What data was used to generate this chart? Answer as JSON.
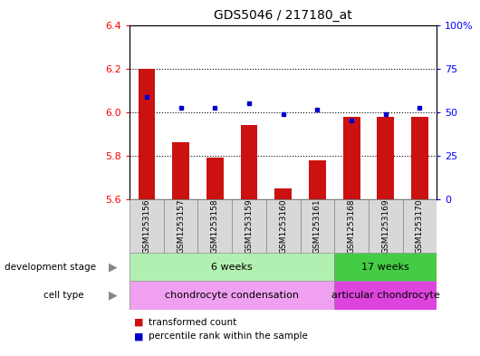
{
  "title": "GDS5046 / 217180_at",
  "samples": [
    "GSM1253156",
    "GSM1253157",
    "GSM1253158",
    "GSM1253159",
    "GSM1253160",
    "GSM1253161",
    "GSM1253168",
    "GSM1253169",
    "GSM1253170"
  ],
  "bar_values": [
    6.2,
    5.86,
    5.79,
    5.94,
    5.65,
    5.78,
    5.98,
    5.98,
    5.98
  ],
  "bar_bottom": 5.6,
  "dot_values": [
    6.07,
    6.02,
    6.02,
    6.04,
    5.99,
    6.01,
    5.96,
    5.99,
    6.02
  ],
  "bar_color": "#cc1111",
  "dot_color": "#0000cc",
  "ylim": [
    5.6,
    6.4
  ],
  "y2lim": [
    0,
    100
  ],
  "y2_ticks": [
    0,
    25,
    50,
    75,
    100
  ],
  "y2_labels": [
    "0",
    "25",
    "50",
    "75",
    "100%"
  ],
  "y_ticks": [
    5.6,
    5.8,
    6.0,
    6.2,
    6.4
  ],
  "dotted_lines": [
    5.8,
    6.0,
    6.2
  ],
  "group1_n": 6,
  "group2_n": 3,
  "dev_stage_label": "development stage",
  "cell_type_label": "cell type",
  "dev_stage_1": "6 weeks",
  "dev_stage_2": "17 weeks",
  "cell_type_1": "chondrocyte condensation",
  "cell_type_2": "articular chondrocyte",
  "group1_color": "#b2f0b2",
  "group2_color": "#44cc44",
  "cell1_color": "#f0a0f0",
  "cell2_color": "#dd44dd",
  "legend_bar_label": "transformed count",
  "legend_dot_label": "percentile rank within the sample",
  "sample_bg": "#d8d8d8",
  "bar_width": 0.5
}
